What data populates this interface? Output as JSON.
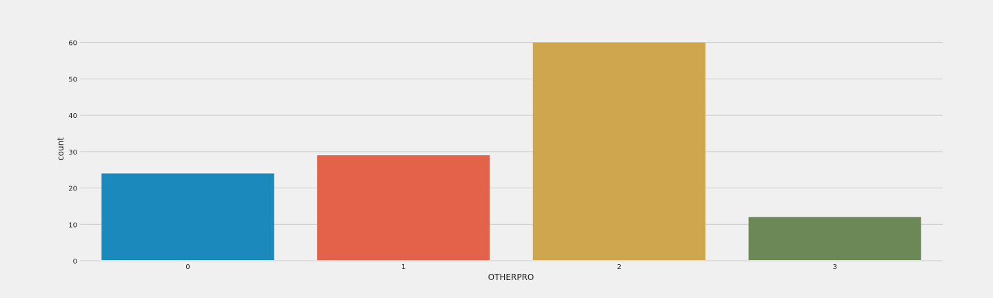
{
  "chart_data": {
    "type": "bar",
    "title": "",
    "xlabel": "OTHERPRO",
    "ylabel": "count",
    "categories": [
      "0",
      "1",
      "2",
      "3"
    ],
    "values": [
      24,
      29,
      60,
      12
    ],
    "ylim": [
      0,
      66
    ],
    "yticks": [
      0,
      10,
      20,
      30,
      40,
      50,
      60
    ],
    "grid": true,
    "colors": [
      "#1b89bc",
      "#e5624a",
      "#cfa54d",
      "#6d8857"
    ],
    "background": "#f0f0f0",
    "grid_color": "#cbcbcb"
  }
}
